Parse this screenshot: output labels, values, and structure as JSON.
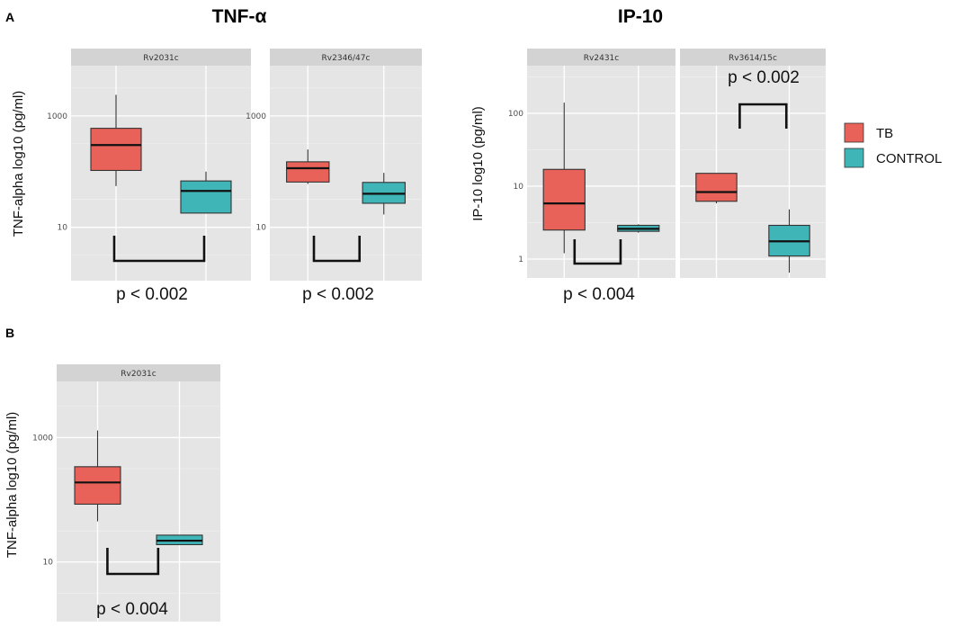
{
  "colors": {
    "tb": "#e8625a",
    "control": "#40b5b8"
  },
  "chart_data": [
    {
      "type": "box",
      "id": "A-TNF-Rv2031c",
      "panel_label": "A",
      "group_title": "TNF-α",
      "facet": "Rv2031c",
      "ylabel": "TNF-alpha log10 (pg/ml)",
      "yscale": "log10",
      "ylim": [
        1.1,
        8000
      ],
      "yticks": [
        10,
        1000
      ],
      "ytick_labels": [
        "10",
        "1000"
      ],
      "categories": [
        "TB",
        "CONTROL"
      ],
      "series": [
        {
          "name": "TB",
          "min": 55,
          "q1": 105,
          "median": 300,
          "q3": 600,
          "max": 2400
        },
        {
          "name": "CONTROL",
          "min": 18,
          "q1": 18,
          "median": 45,
          "q3": 68,
          "max": 100
        }
      ],
      "annotation": {
        "text": "p < 0.002",
        "bracket": "down"
      }
    },
    {
      "type": "box",
      "id": "A-TNF-Rv2346",
      "facet": "Rv2346/47c",
      "yscale": "log10",
      "ylim": [
        1.1,
        8000
      ],
      "yticks": [
        10,
        1000
      ],
      "ytick_labels": [
        "10",
        "1000"
      ],
      "categories": [
        "TB",
        "CONTROL"
      ],
      "series": [
        {
          "name": "TB",
          "min": 60,
          "q1": 65,
          "median": 115,
          "q3": 150,
          "max": 250
        },
        {
          "name": "CONTROL",
          "min": 17,
          "q1": 27,
          "median": 40,
          "q3": 64,
          "max": 95
        }
      ],
      "annotation": {
        "text": "p < 0.002",
        "bracket": "down"
      }
    },
    {
      "type": "box",
      "id": "A-IP10-Rv2431c",
      "group_title": "IP-10",
      "facet": "Rv2431c",
      "ylabel": "IP-10 log10 (pg/ml)",
      "yscale": "log10",
      "ylim": [
        0.55,
        450
      ],
      "yticks": [
        1,
        10,
        100
      ],
      "ytick_labels": [
        "1",
        "10",
        "100"
      ],
      "categories": [
        "TB",
        "CONTROL"
      ],
      "series": [
        {
          "name": "TB",
          "min": 1.2,
          "q1": 2.5,
          "median": 5.8,
          "q3": 17,
          "max": 140
        },
        {
          "name": "CONTROL",
          "min": 2.3,
          "q1": 2.4,
          "median": 2.6,
          "q3": 2.9,
          "max": 3.0
        }
      ],
      "annotation": {
        "text": "p < 0.004",
        "bracket": "down"
      }
    },
    {
      "type": "box",
      "id": "A-IP10-Rv3614",
      "facet": "Rv3614/15c",
      "yscale": "log10",
      "ylim": [
        0.55,
        450
      ],
      "yticks": [
        1,
        10,
        100
      ],
      "ytick_labels": [
        "1",
        "10",
        "100"
      ],
      "categories": [
        "TB",
        "CONTROL"
      ],
      "series": [
        {
          "name": "TB",
          "min": 5.8,
          "q1": 6.2,
          "median": 8.3,
          "q3": 15,
          "max": 15
        },
        {
          "name": "CONTROL",
          "min": 0.65,
          "q1": 1.1,
          "median": 1.75,
          "q3": 2.9,
          "max": 4.8
        }
      ],
      "annotation": {
        "text": "p < 0.002",
        "bracket": "up"
      }
    },
    {
      "type": "box",
      "id": "B-TNF-Rv2031c",
      "panel_label": "B",
      "facet": "Rv2031c",
      "ylabel": "TNF-alpha log10 (pg/ml)",
      "yscale": "log10",
      "ylim": [
        1.1,
        8000
      ],
      "yticks": [
        10,
        1000
      ],
      "ytick_labels": [
        "10",
        "1000"
      ],
      "categories": [
        "TB",
        "CONTROL"
      ],
      "series": [
        {
          "name": "TB",
          "min": 45,
          "q1": 85,
          "median": 190,
          "q3": 340,
          "max": 1300
        },
        {
          "name": "CONTROL",
          "min": 19,
          "q1": 19,
          "median": 22,
          "q3": 27,
          "max": 27
        }
      ],
      "annotation": {
        "text": "p < 0.004",
        "bracket": "down"
      }
    }
  ],
  "legend": {
    "items": [
      "TB",
      "CONTROL"
    ]
  }
}
